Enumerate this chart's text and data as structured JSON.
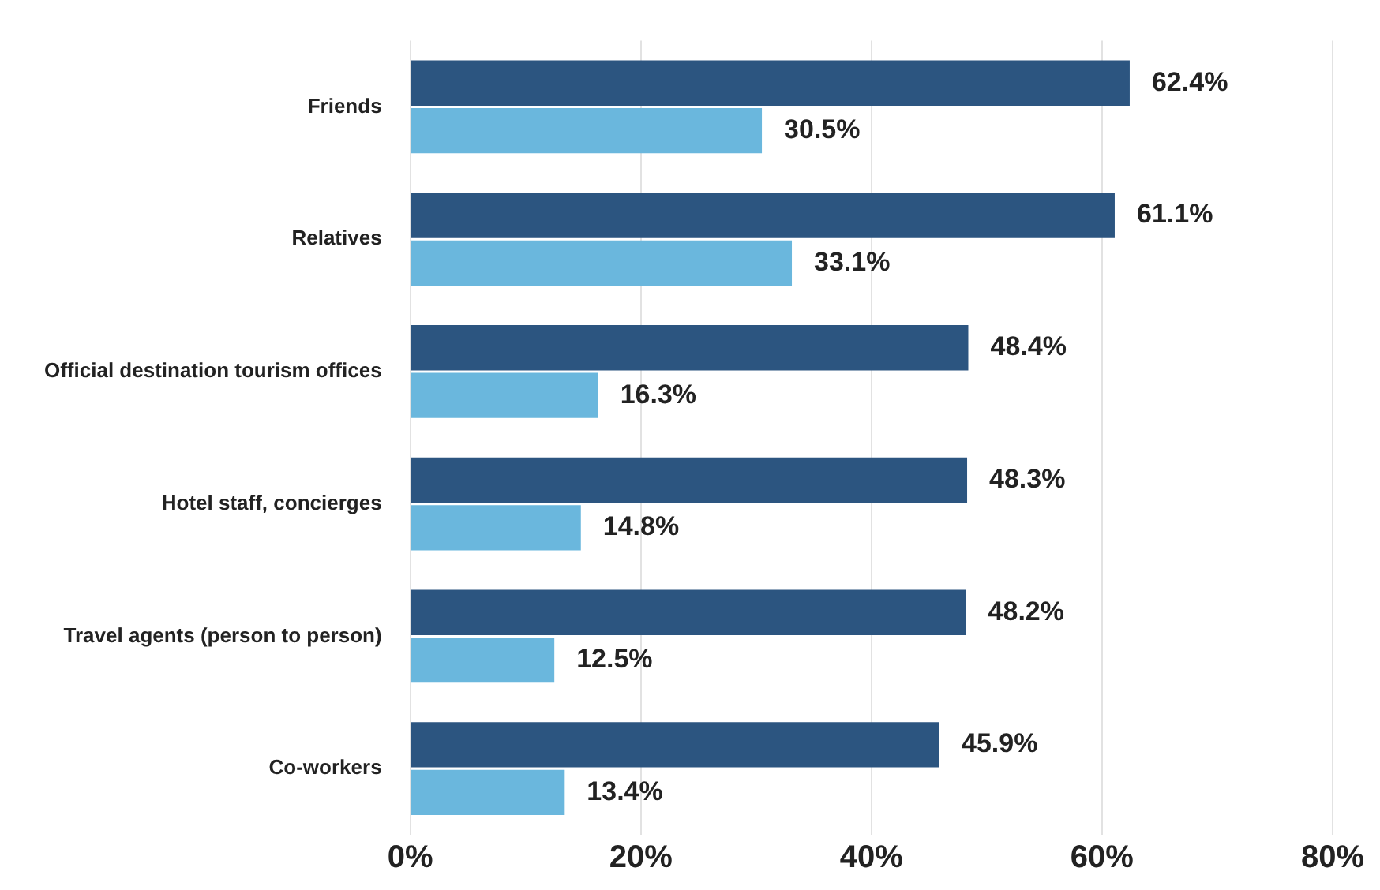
{
  "chart_data": {
    "type": "bar",
    "orientation": "horizontal",
    "categories": [
      "Friends",
      "Relatives",
      "Official destination tourism offices",
      "Hotel staff, concierges",
      "Travel agents (person to person)",
      "Co-workers"
    ],
    "series": [
      {
        "color": "#2c5580",
        "values": [
          62.4,
          61.1,
          48.4,
          48.3,
          48.2,
          45.9
        ],
        "value_labels": [
          "62.4%",
          "61.1%",
          "48.4%",
          "48.3%",
          "48.2%",
          "45.9%"
        ]
      },
      {
        "color": "#6ab7dd",
        "values": [
          30.5,
          33.1,
          16.3,
          14.8,
          12.5,
          13.4
        ],
        "value_labels": [
          "30.5%",
          "33.1%",
          "16.3%",
          "14.8%",
          "12.5%",
          "13.4%"
        ]
      }
    ],
    "xlim": [
      0,
      80
    ],
    "xticks": [
      {
        "value": 0,
        "label": "0%"
      },
      {
        "value": 20,
        "label": "20%"
      },
      {
        "value": 40,
        "label": "40%"
      },
      {
        "value": 60,
        "label": "60%"
      },
      {
        "value": 80,
        "label": "80%"
      }
    ],
    "grid": "x",
    "legend": false
  }
}
